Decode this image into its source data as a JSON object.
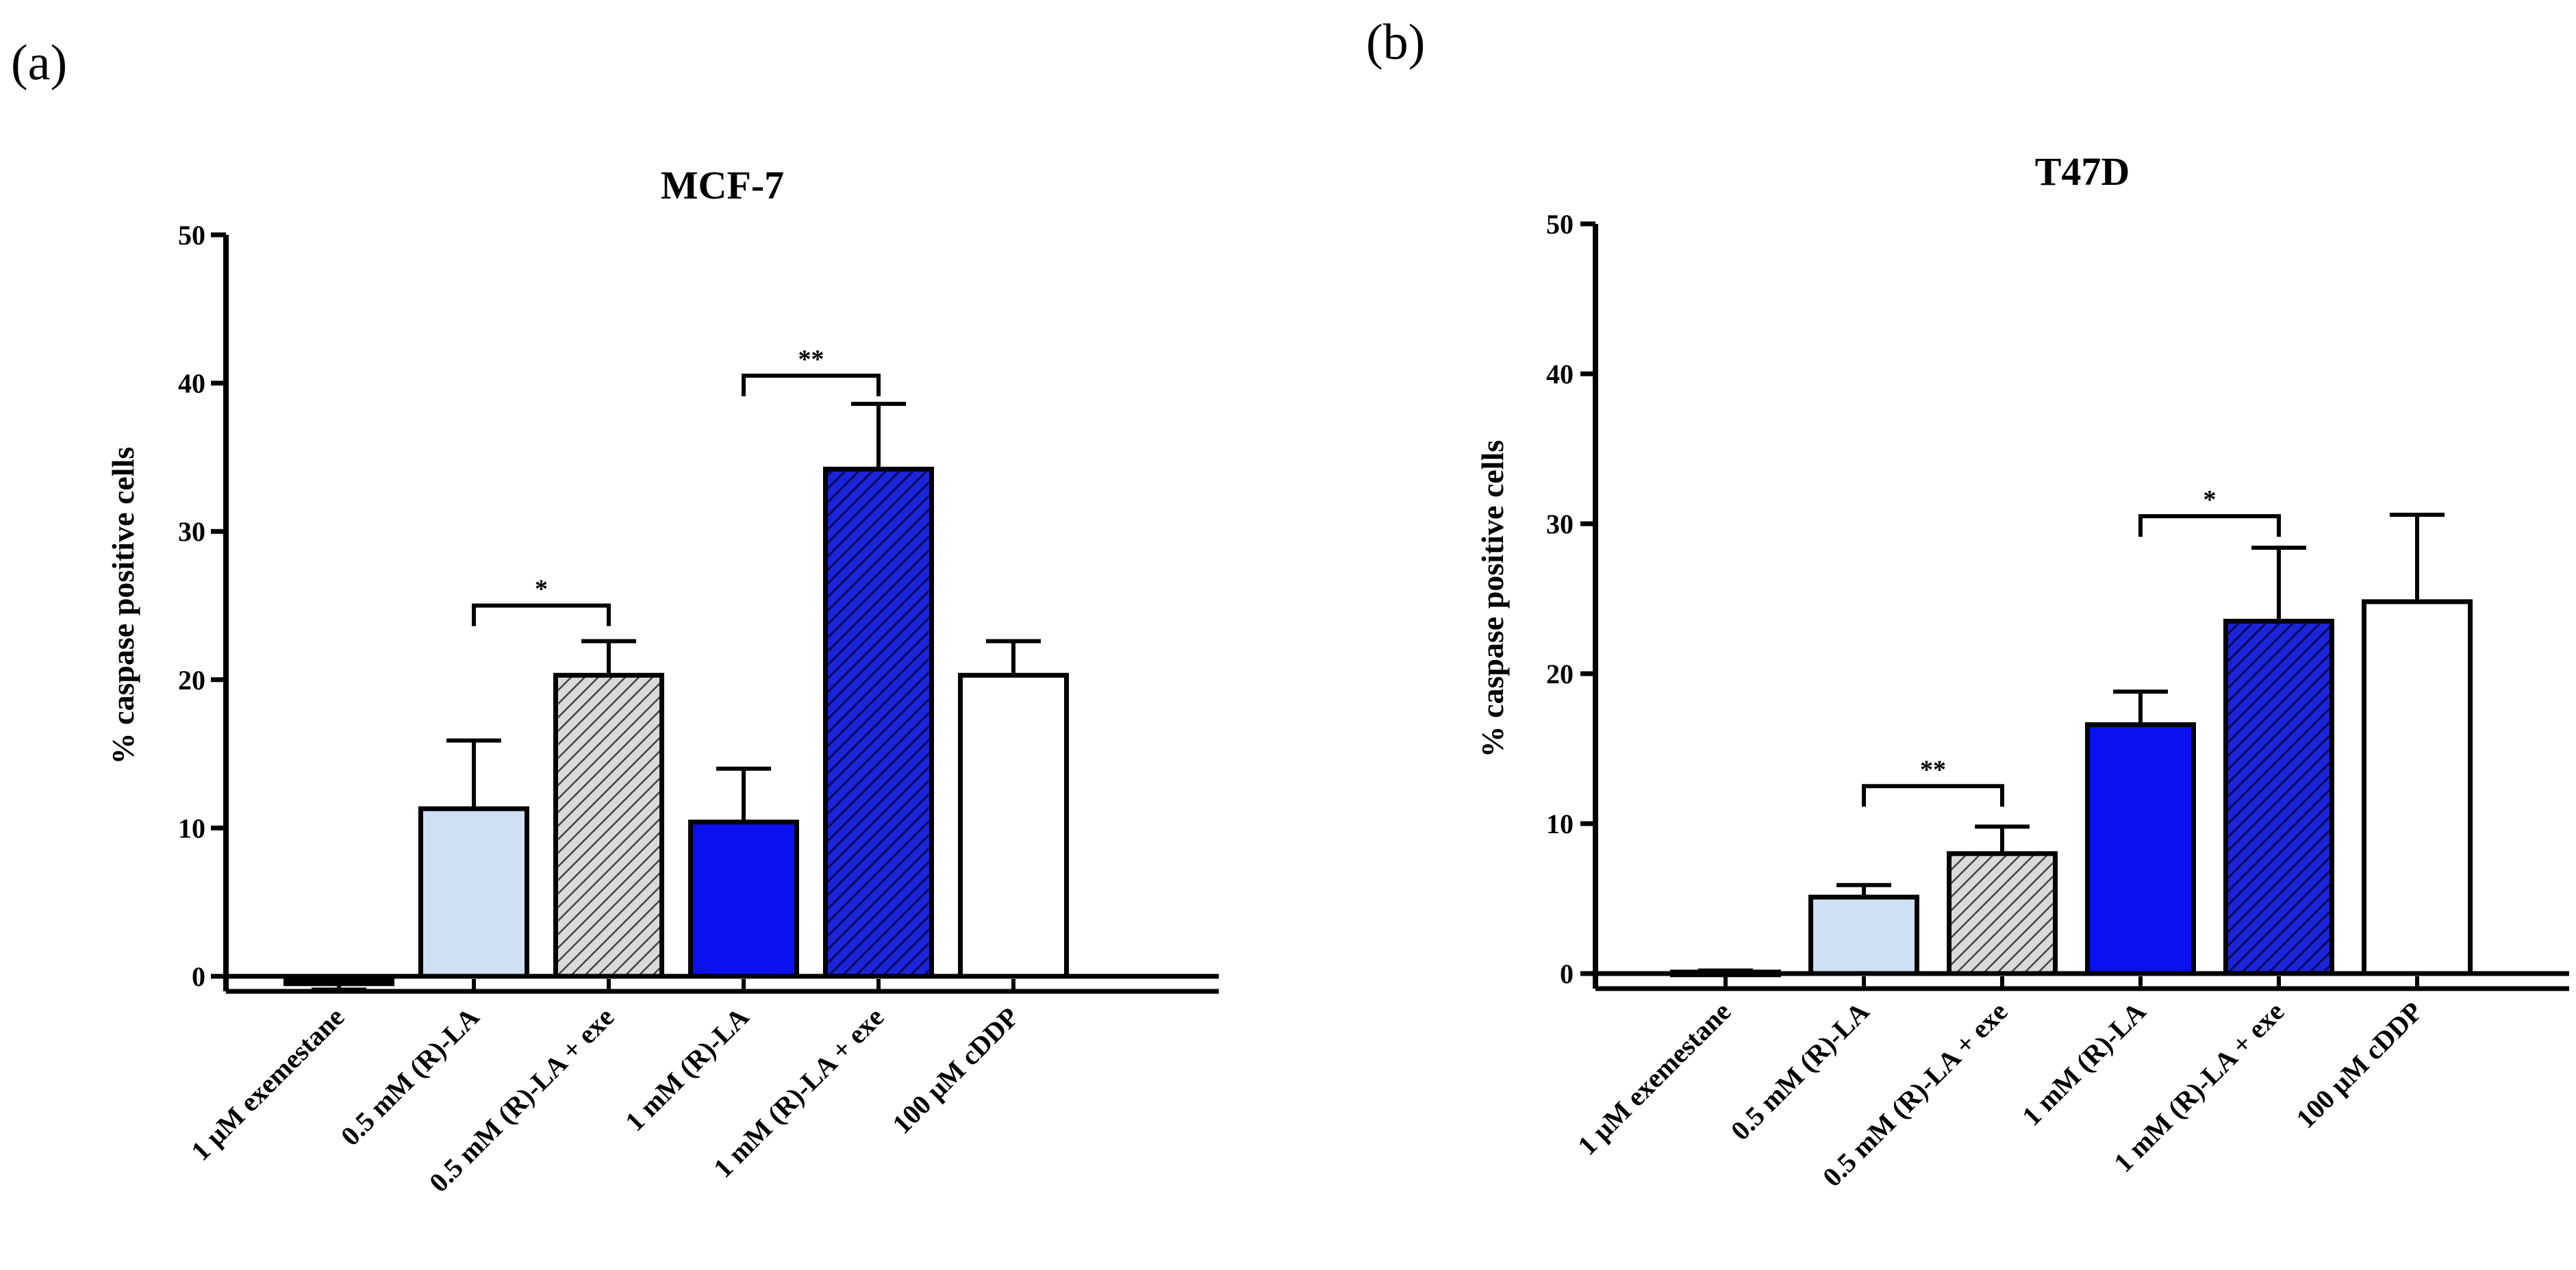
{
  "panels": [
    {
      "label": "(a)"
    },
    {
      "label": "(b)"
    }
  ],
  "chart_data": [
    {
      "type": "bar",
      "title": "MCF-7",
      "ylabel": "% caspase positive cells",
      "xlabel": "",
      "ylim": [
        0,
        50
      ],
      "yticks": [
        0,
        10,
        20,
        30,
        40,
        50
      ],
      "categories": [
        "1 µM exemestane",
        "0.5 mM (R)-LA",
        "0.5 mM (R)-LA + exe",
        "1 mM (R)-LA",
        "1 mM (R)-LA + exe",
        "100 µM cDDP"
      ],
      "values": [
        -0.5,
        11.3,
        20.3,
        10.4,
        34.2,
        20.3
      ],
      "errors": [
        0.4,
        4.6,
        2.3,
        3.6,
        4.4,
        2.3
      ],
      "fills": [
        "#000000",
        "#cfe0f5",
        "hatch-light",
        "#0a10f0",
        "hatch-dark",
        "#ffffff"
      ],
      "significance": [
        {
          "from": 1,
          "to": 2,
          "y": 25.0,
          "label": "*"
        },
        {
          "from": 3,
          "to": 4,
          "y": 40.5,
          "label": "**"
        }
      ]
    },
    {
      "type": "bar",
      "title": "T47D",
      "ylabel": "% caspase positive cells",
      "xlabel": "",
      "ylim": [
        0,
        50
      ],
      "yticks": [
        0,
        10,
        20,
        30,
        40,
        50
      ],
      "categories": [
        "1 µM exemestane",
        "0.5 mM (R)-LA",
        "0.5 mM (R)-LA + exe",
        "1 mM (R)-LA",
        "1 mM (R)-LA + exe",
        "100 µM cDDP"
      ],
      "values": [
        0.1,
        5.1,
        8.0,
        16.6,
        23.5,
        24.8
      ],
      "errors": [
        0.1,
        0.8,
        1.8,
        2.2,
        4.9,
        5.8
      ],
      "fills": [
        "#000000",
        "#cfe0f5",
        "hatch-light",
        "#0a10f0",
        "hatch-dark",
        "#ffffff"
      ],
      "significance": [
        {
          "from": 1,
          "to": 2,
          "y": 12.5,
          "label": "**"
        },
        {
          "from": 3,
          "to": 4,
          "y": 30.5,
          "label": "*"
        }
      ]
    }
  ]
}
